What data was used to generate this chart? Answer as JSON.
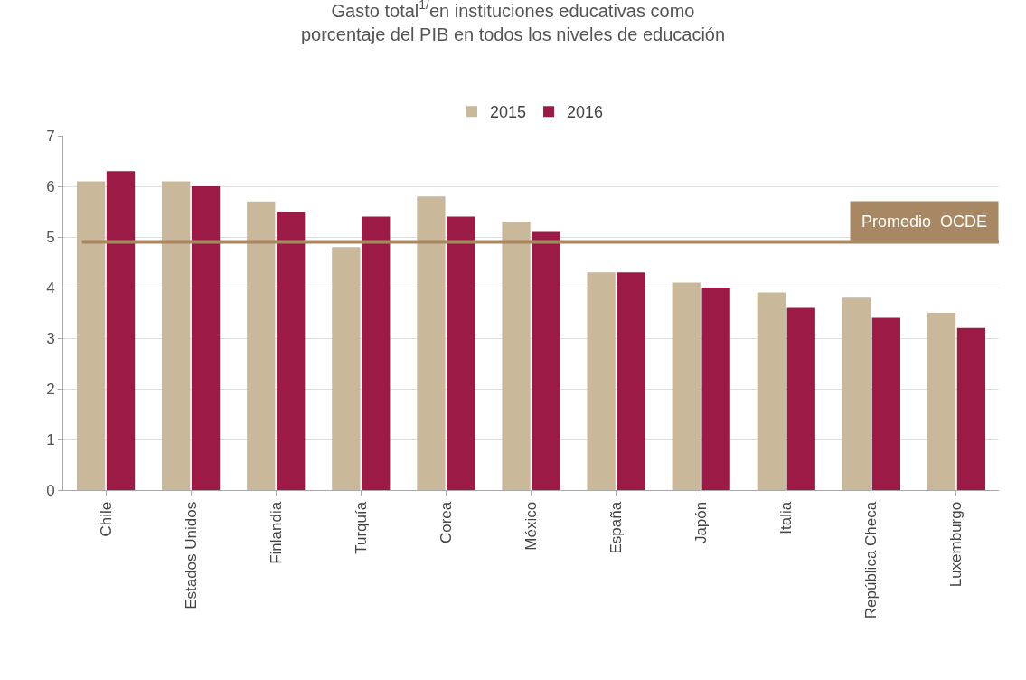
{
  "chart_data": {
    "type": "bar",
    "title": "Gasto total$^{1/}$en instituciones educativas como\nporcentaje del PIB en todos los niveles de educación",
    "categories": [
      "Chile",
      "Estados Unidos",
      "Finlandia",
      "Turquía",
      "Corea",
      "México",
      "España",
      "Japón",
      "Italia",
      "República Checa",
      "Luxemburgo"
    ],
    "series": [
      {
        "name": "2015",
        "color": "#c9b99a",
        "values": [
          6.1,
          6.1,
          5.7,
          4.8,
          5.8,
          5.3,
          4.3,
          4.1,
          3.9,
          3.8,
          3.5
        ]
      },
      {
        "name": "2016",
        "color": "#9b1b46",
        "values": [
          6.3,
          6.0,
          5.5,
          5.4,
          5.4,
          5.1,
          4.3,
          4.0,
          3.6,
          3.4,
          3.2
        ]
      }
    ],
    "ylim": [
      0,
      7
    ],
    "yticks": [
      0,
      1,
      2,
      3,
      4,
      5,
      6,
      7
    ],
    "grid": "y",
    "legend": "top",
    "ref_lines": [
      {
        "axis": "y",
        "value": 4.9,
        "label": "Promedio  OCDE",
        "color": "#a88862"
      }
    ]
  }
}
